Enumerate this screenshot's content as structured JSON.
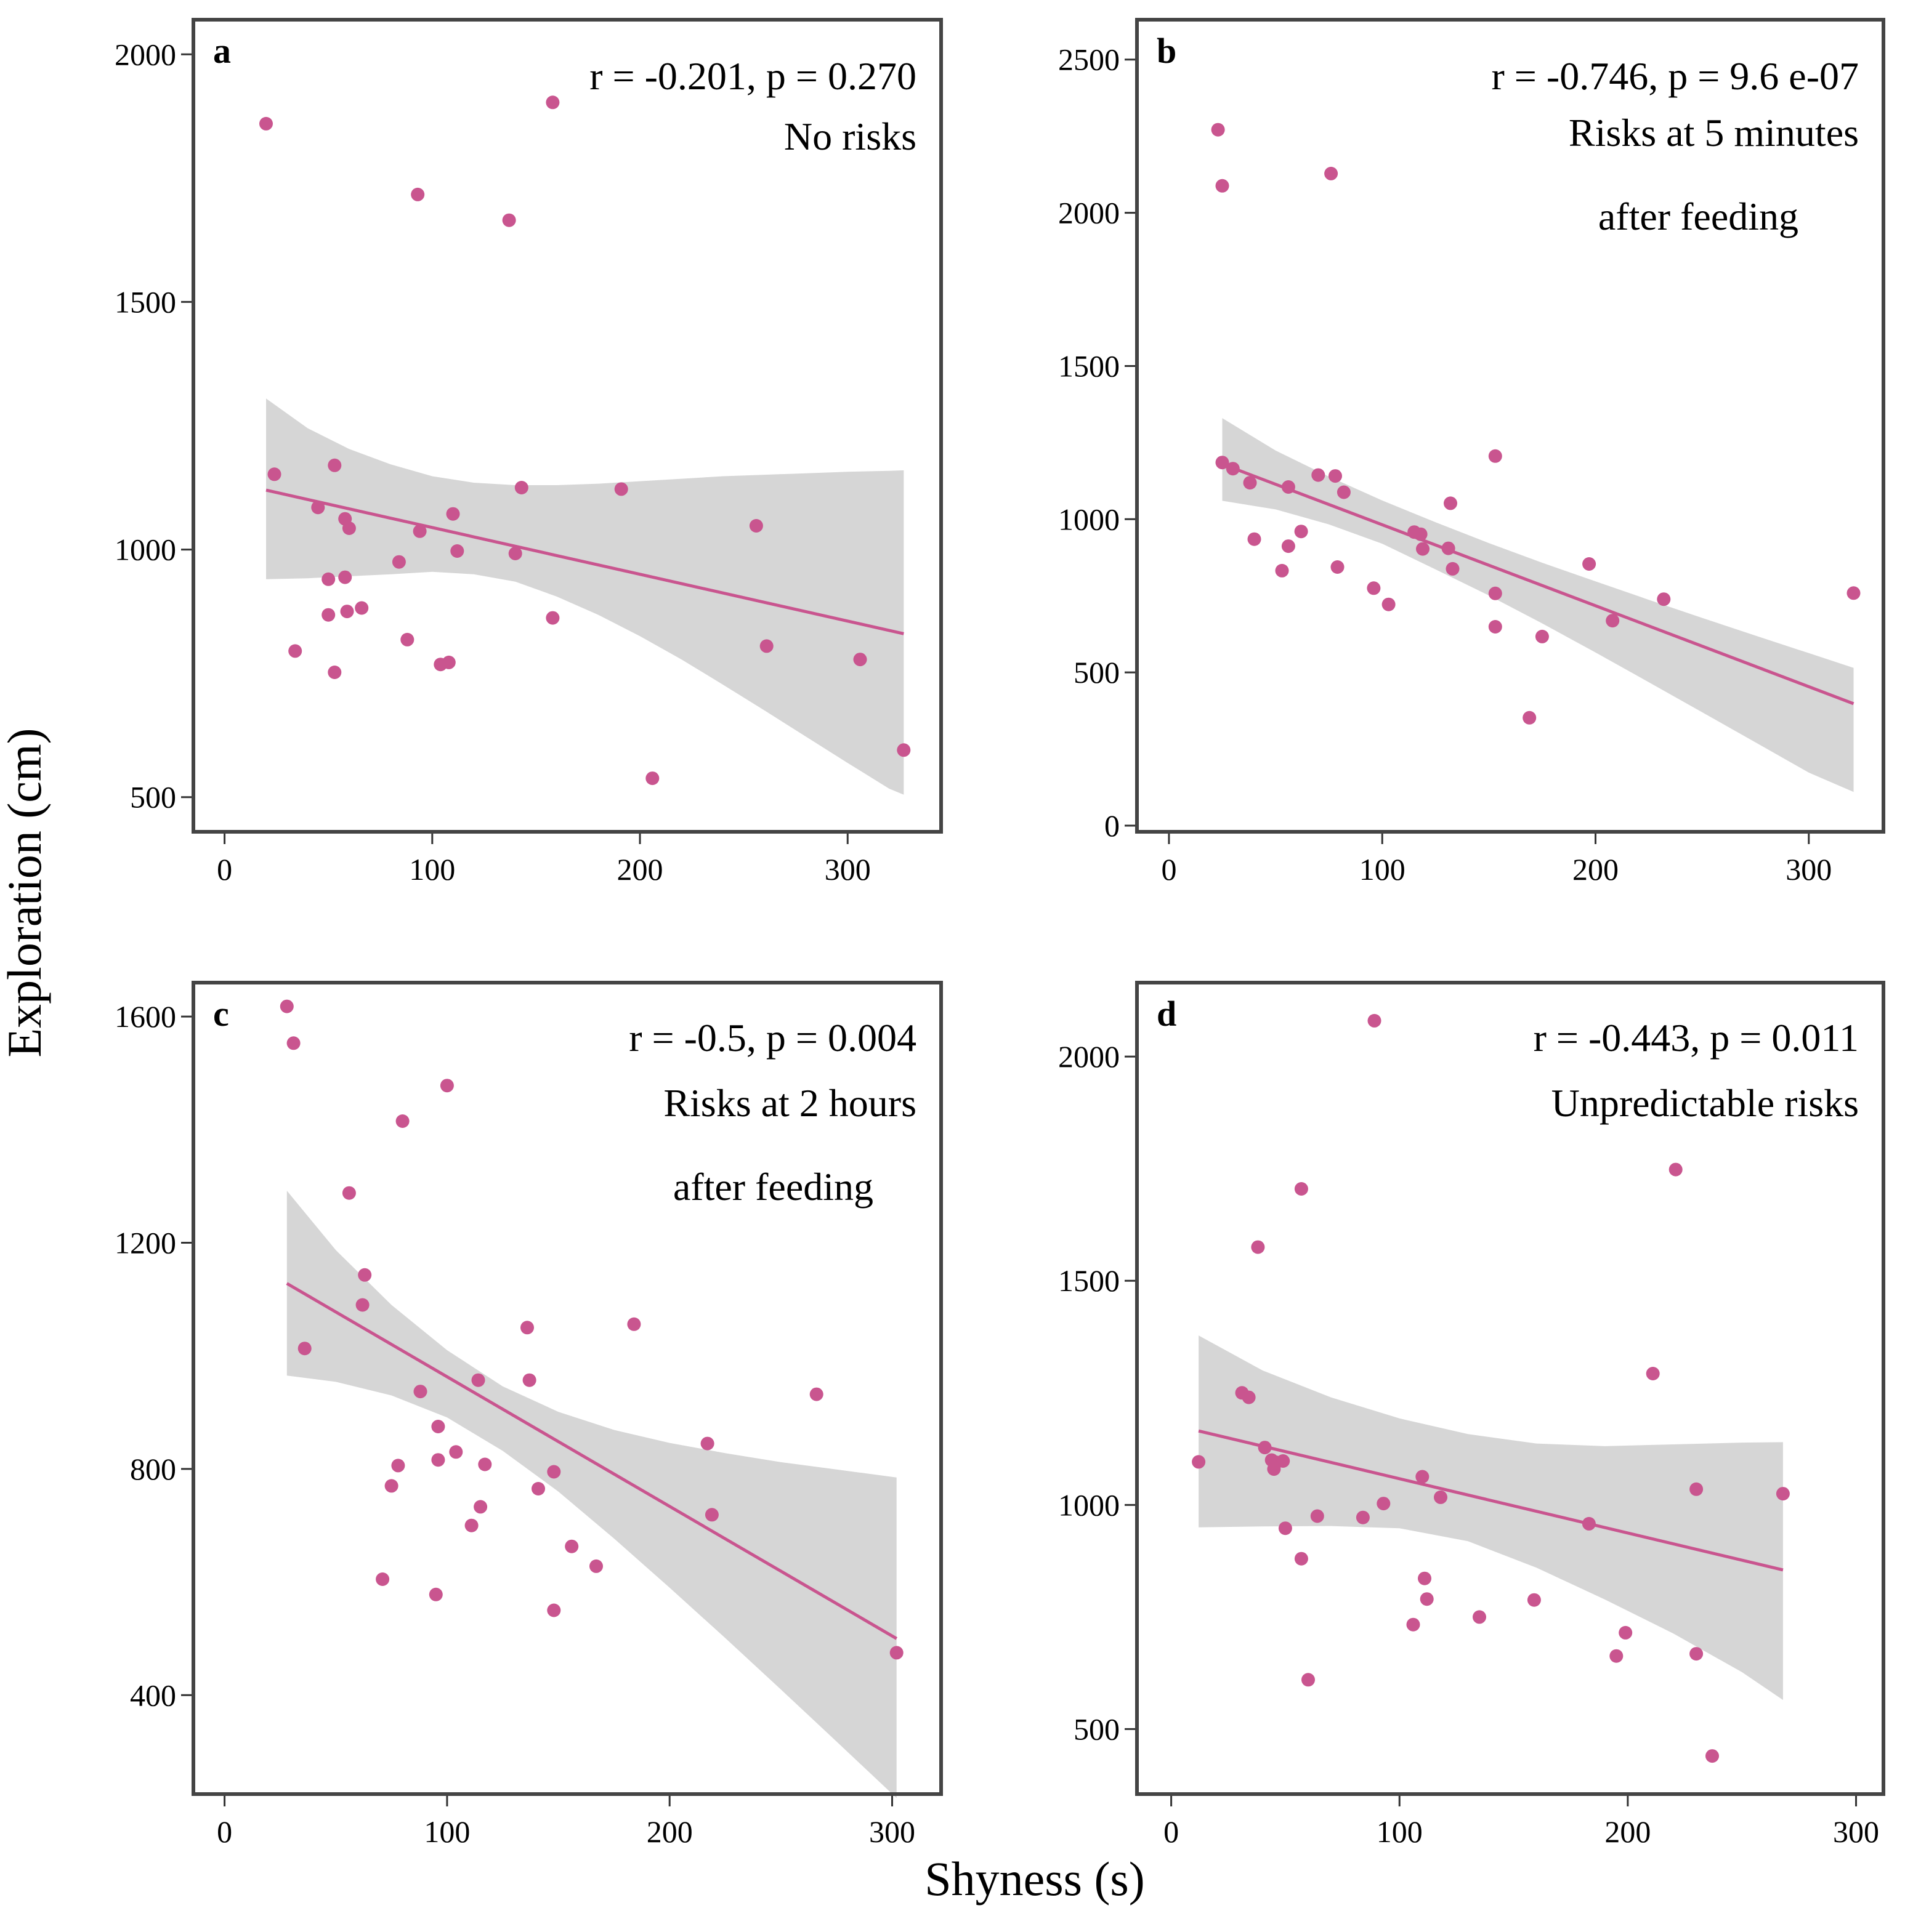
{
  "figure": {
    "xlabel": "Shyness (s)",
    "ylabel": "Exploration (cm)",
    "point_color": "#c9558f",
    "line_color": "#c9558f",
    "band_color": "#d6d6d6",
    "frame_color": "#444444"
  },
  "chart_data": [
    {
      "type": "scatter",
      "panel": "a",
      "annotation_stat": "r = -0.201, p = 0.270",
      "annotation_lines": [
        "No risks"
      ],
      "xlim": [
        -15,
        345
      ],
      "ylim": [
        430,
        2070
      ],
      "xticks": [
        0,
        100,
        200,
        300
      ],
      "yticks": [
        500,
        1000,
        1500,
        2000
      ],
      "points": [
        [
          20,
          1860
        ],
        [
          24,
          1152
        ],
        [
          34,
          795
        ],
        [
          45,
          1085
        ],
        [
          50,
          940
        ],
        [
          50,
          868
        ],
        [
          53,
          752
        ],
        [
          53,
          1170
        ],
        [
          58,
          1062
        ],
        [
          58,
          944
        ],
        [
          59,
          875
        ],
        [
          60,
          1043
        ],
        [
          66,
          882
        ],
        [
          84,
          975
        ],
        [
          88,
          818
        ],
        [
          93,
          1717
        ],
        [
          94,
          1037
        ],
        [
          104,
          768
        ],
        [
          108,
          772
        ],
        [
          110,
          1072
        ],
        [
          112,
          997
        ],
        [
          137,
          1665
        ],
        [
          140,
          992
        ],
        [
          143,
          1125
        ],
        [
          158,
          862
        ],
        [
          158,
          1903
        ],
        [
          191,
          1122
        ],
        [
          206,
          538
        ],
        [
          256,
          1048
        ],
        [
          261,
          805
        ],
        [
          306,
          778
        ],
        [
          327,
          595
        ]
      ],
      "fit": {
        "x": [
          20,
          327
        ],
        "y": [
          1120,
          830
        ]
      },
      "band": {
        "x": [
          20,
          40,
          60,
          80,
          100,
          120,
          140,
          160,
          180,
          200,
          220,
          240,
          260,
          280,
          300,
          320,
          327
        ],
        "upper": [
          1305,
          1245,
          1203,
          1172,
          1148,
          1135,
          1130,
          1130,
          1133,
          1138,
          1143,
          1148,
          1151,
          1154,
          1157,
          1159,
          1160
        ],
        "lower": [
          940,
          942,
          946,
          950,
          955,
          950,
          935,
          905,
          868,
          825,
          778,
          727,
          675,
          622,
          569,
          517,
          505
        ]
      }
    },
    {
      "type": "scatter",
      "panel": "b",
      "annotation_stat": "r = -0.746, p = 9.6 e-07",
      "annotation_lines": [
        "Risks at 5 minutes",
        "after feeding"
      ],
      "xlim": [
        -15,
        335
      ],
      "ylim": [
        -20,
        2630
      ],
      "xticks": [
        0,
        100,
        200,
        300
      ],
      "yticks": [
        0,
        500,
        1000,
        1500,
        2000,
        2500
      ],
      "points": [
        [
          23,
          2271
        ],
        [
          25,
          2088
        ],
        [
          25,
          1185
        ],
        [
          30,
          1165
        ],
        [
          38,
          1119
        ],
        [
          40,
          935
        ],
        [
          56,
          912
        ],
        [
          56,
          1105
        ],
        [
          62,
          960
        ],
        [
          53,
          832
        ],
        [
          70,
          1144
        ],
        [
          76,
          2128
        ],
        [
          78,
          1141
        ],
        [
          79,
          844
        ],
        [
          82,
          1088
        ],
        [
          96,
          775
        ],
        [
          103,
          722
        ],
        [
          115,
          958
        ],
        [
          118,
          951
        ],
        [
          119,
          903
        ],
        [
          131,
          905
        ],
        [
          132,
          1052
        ],
        [
          133,
          838
        ],
        [
          153,
          1206
        ],
        [
          153,
          758
        ],
        [
          153,
          649
        ],
        [
          175,
          617
        ],
        [
          169,
          352
        ],
        [
          197,
          854
        ],
        [
          208,
          669
        ],
        [
          232,
          739
        ],
        [
          321,
          759
        ]
      ],
      "fit": {
        "x": [
          25,
          321
        ],
        "y": [
          1180,
          398
        ]
      },
      "band": {
        "x": [
          25,
          50,
          75,
          100,
          125,
          150,
          175,
          200,
          225,
          250,
          275,
          300,
          321
        ],
        "upper": [
          1330,
          1224,
          1139,
          1061,
          990,
          922,
          858,
          797,
          737,
          678,
          620,
          563,
          515
        ],
        "lower": [
          1060,
          1032,
          983,
          920,
          836,
          751,
          660,
          565,
          468,
          370,
          272,
          173,
          110
        ]
      }
    },
    {
      "type": "scatter",
      "panel": "c",
      "annotation_stat": "r = -0.5, p = 0.004",
      "annotation_lines": [
        "Risks at 2 hours",
        "after feeding"
      ],
      "xlim": [
        -14,
        322
      ],
      "ylim": [
        225,
        1660
      ],
      "xticks": [
        0,
        100,
        200,
        300
      ],
      "yticks": [
        400,
        800,
        1200,
        1600
      ],
      "points": [
        [
          28,
          1618
        ],
        [
          31,
          1553
        ],
        [
          36,
          1013
        ],
        [
          56,
          1288
        ],
        [
          62,
          1090
        ],
        [
          63,
          1143
        ],
        [
          71,
          605
        ],
        [
          75,
          770
        ],
        [
          78,
          806
        ],
        [
          80,
          1415
        ],
        [
          88,
          937
        ],
        [
          95,
          578
        ],
        [
          96,
          875
        ],
        [
          96,
          816
        ],
        [
          100,
          1478
        ],
        [
          104,
          830
        ],
        [
          111,
          700
        ],
        [
          114,
          957
        ],
        [
          115,
          733
        ],
        [
          117,
          808
        ],
        [
          136,
          1050
        ],
        [
          137,
          957
        ],
        [
          141,
          765
        ],
        [
          148,
          795
        ],
        [
          148,
          550
        ],
        [
          156,
          663
        ],
        [
          167,
          628
        ],
        [
          184,
          1056
        ],
        [
          217,
          845
        ],
        [
          219,
          719
        ],
        [
          266,
          932
        ],
        [
          302,
          475
        ]
      ],
      "fit": {
        "x": [
          28,
          302
        ],
        "y": [
          1128,
          500
        ]
      },
      "band": {
        "x": [
          28,
          50,
          75,
          100,
          125,
          150,
          175,
          200,
          225,
          250,
          275,
          302
        ],
        "upper": [
          1292,
          1187,
          1090,
          1010,
          946,
          901,
          869,
          846,
          828,
          812,
          799,
          785
        ],
        "lower": [
          965,
          954,
          930,
          891,
          832,
          760,
          677,
          590,
          501,
          410,
          318,
          218
        ]
      }
    },
    {
      "type": "scatter",
      "panel": "d",
      "annotation_stat": "r = -0.443, p = 0.011",
      "annotation_lines": [
        "Unpredictable risks"
      ],
      "xlim": [
        -15,
        312
      ],
      "ylim": [
        355,
        2165
      ],
      "xticks": [
        0,
        100,
        200,
        300
      ],
      "yticks": [
        500,
        1000,
        1500,
        2000
      ],
      "points": [
        [
          12,
          1096
        ],
        [
          31,
          1250
        ],
        [
          34,
          1240
        ],
        [
          38,
          1575
        ],
        [
          41,
          1128
        ],
        [
          44,
          1100
        ],
        [
          45,
          1080
        ],
        [
          46,
          1095
        ],
        [
          49,
          1098
        ],
        [
          50,
          948
        ],
        [
          57,
          1705
        ],
        [
          57,
          880
        ],
        [
          60,
          610
        ],
        [
          64,
          975
        ],
        [
          84,
          972
        ],
        [
          89,
          2080
        ],
        [
          93,
          1003
        ],
        [
          106,
          733
        ],
        [
          110,
          1063
        ],
        [
          111,
          836
        ],
        [
          112,
          790
        ],
        [
          118,
          1017
        ],
        [
          135,
          750
        ],
        [
          159,
          788
        ],
        [
          183,
          958
        ],
        [
          199,
          715
        ],
        [
          195,
          663
        ],
        [
          211,
          1293
        ],
        [
          221,
          1748
        ],
        [
          230,
          1035
        ],
        [
          230,
          668
        ],
        [
          237,
          440
        ],
        [
          268,
          1025
        ]
      ],
      "fit": {
        "x": [
          12,
          268
        ],
        "y": [
          1165,
          855
        ]
      },
      "band": {
        "x": [
          12,
          40,
          70,
          100,
          130,
          160,
          190,
          220,
          250,
          268
        ],
        "upper": [
          1378,
          1300,
          1240,
          1193,
          1158,
          1137,
          1131,
          1135,
          1139,
          1140
        ],
        "lower": [
          950,
          952,
          953,
          948,
          919,
          860,
          789,
          713,
          627,
          565
        ]
      }
    }
  ]
}
